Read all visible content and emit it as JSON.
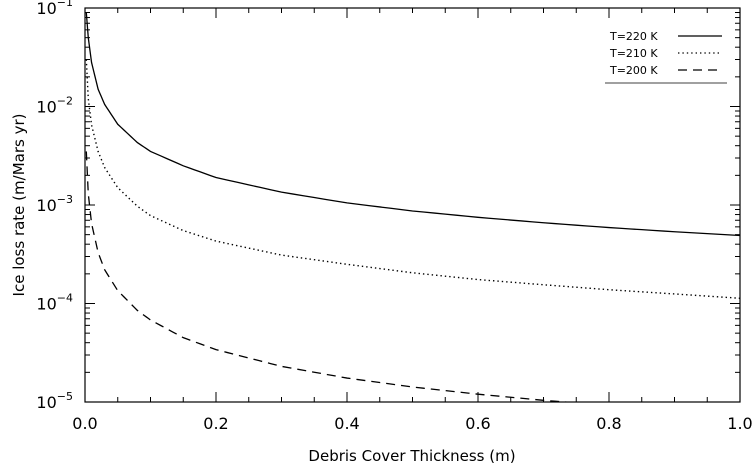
{
  "chart_data": {
    "type": "line",
    "xlabel": "Debris Cover Thickness (m)",
    "ylabel": "Ice loss rate (m/Mars yr)",
    "xlim": [
      0.0,
      1.0
    ],
    "ylim": [
      1e-05,
      0.1
    ],
    "yscale": "log",
    "grid": false,
    "legend_position": "top-right",
    "x_ticks": [
      "0.0",
      "0.2",
      "0.4",
      "0.6",
      "0.8",
      "1.0"
    ],
    "y_ticks": [
      {
        "base": "10",
        "exp": "−5"
      },
      {
        "base": "10",
        "exp": "−4"
      },
      {
        "base": "10",
        "exp": "−3"
      },
      {
        "base": "10",
        "exp": "−2"
      },
      {
        "base": "10",
        "exp": "−1"
      }
    ],
    "x": [
      0.002,
      0.005,
      0.01,
      0.02,
      0.03,
      0.05,
      0.08,
      0.1,
      0.15,
      0.2,
      0.3,
      0.4,
      0.5,
      0.6,
      0.7,
      0.8,
      0.9,
      1.0
    ],
    "series": [
      {
        "name": "T=220 K",
        "style": "solid",
        "values": [
          0.09,
          0.05,
          0.028,
          0.015,
          0.0105,
          0.0066,
          0.0043,
          0.0035,
          0.0025,
          0.0019,
          0.00135,
          0.00105,
          0.00087,
          0.00075,
          0.00066,
          0.00059,
          0.000535,
          0.00049
        ]
      },
      {
        "name": "T=210 K",
        "style": "dotted",
        "values": [
          0.03,
          0.012,
          0.0065,
          0.0035,
          0.0024,
          0.0015,
          0.00097,
          0.00078,
          0.00055,
          0.00043,
          0.00031,
          0.00025,
          0.000205,
          0.000175,
          0.000155,
          0.000138,
          0.000125,
          0.000113
        ]
      },
      {
        "name": "T=200 K",
        "style": "dashed",
        "values": [
          0.0035,
          0.0013,
          0.00065,
          0.00033,
          0.00022,
          0.000135,
          8.5e-05,
          6.8e-05,
          4.5e-05,
          3.4e-05,
          2.3e-05,
          1.75e-05,
          1.42e-05,
          1.2e-05,
          1.04e-05,
          9.2e-06,
          8.3e-06,
          7.6e-06
        ]
      }
    ]
  }
}
